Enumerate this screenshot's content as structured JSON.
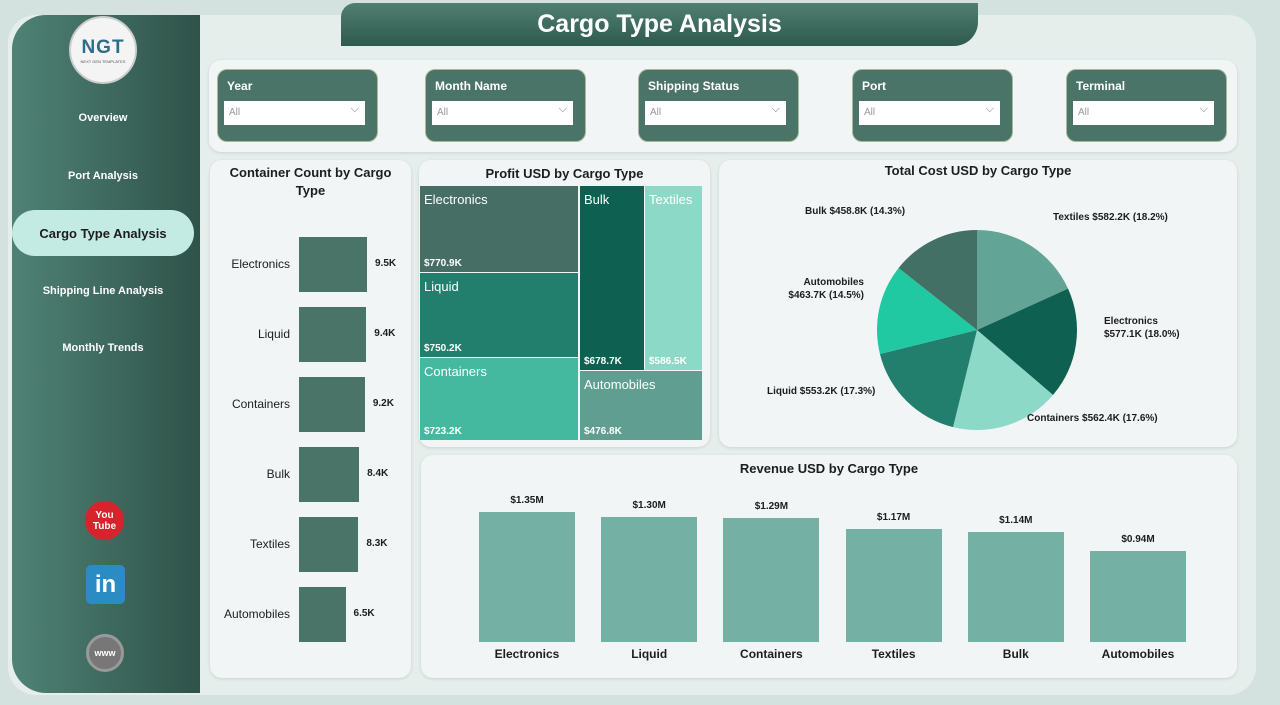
{
  "title": "Cargo Type Analysis",
  "logo": {
    "text": "NGT",
    "subtext": "NEXT GEN TEMPLATES"
  },
  "nav": [
    {
      "label": "Overview"
    },
    {
      "label": "Port Analysis"
    },
    {
      "label": "Cargo Type Analysis",
      "active": true
    },
    {
      "label": "Shipping Line Analysis"
    },
    {
      "label": "Monthly Trends"
    }
  ],
  "social": [
    {
      "icon": "youtube-icon",
      "label": "You Tube"
    },
    {
      "icon": "linkedin-icon",
      "label": "in"
    },
    {
      "icon": "globe-icon",
      "label": "www"
    }
  ],
  "filters": [
    {
      "label": "Year",
      "value": "All"
    },
    {
      "label": "Month Name",
      "value": "All"
    },
    {
      "label": "Shipping Status",
      "value": "All"
    },
    {
      "label": "Port",
      "value": "All"
    },
    {
      "label": "Terminal",
      "value": "All"
    }
  ],
  "colors": {
    "accent": "#4a7468",
    "bar": "#74b0a4",
    "active_nav": "#c3ebe3"
  },
  "chart_data": [
    {
      "type": "bar",
      "orientation": "horizontal",
      "title": "Container Count by Cargo Type",
      "categories": [
        "Electronics",
        "Liquid",
        "Containers",
        "Bulk",
        "Textiles",
        "Automobiles"
      ],
      "values": [
        9500,
        9400,
        9200,
        8400,
        8300,
        6500
      ],
      "labels": [
        "9.5K",
        "9.4K",
        "9.2K",
        "8.4K",
        "8.3K",
        "6.5K"
      ]
    },
    {
      "type": "treemap",
      "title": "Profit USD by Cargo Type",
      "categories": [
        "Electronics",
        "Liquid",
        "Containers",
        "Bulk",
        "Textiles",
        "Automobiles"
      ],
      "values": [
        770900,
        750200,
        723200,
        678700,
        586500,
        476800
      ],
      "labels": [
        "$770.9K",
        "$750.2K",
        "$723.2K",
        "$678.7K",
        "$586.5K",
        "$476.8K"
      ],
      "colors": [
        "#476e65",
        "#237f6d",
        "#44b9a0",
        "#0e6150",
        "#8dd9c8",
        "#5f9e91"
      ]
    },
    {
      "type": "pie",
      "title": "Total Cost USD by Cargo Type",
      "categories": [
        "Textiles",
        "Electronics",
        "Containers",
        "Liquid",
        "Automobiles",
        "Bulk"
      ],
      "values": [
        582200,
        577100,
        562400,
        553200,
        463700,
        458800
      ],
      "percents": [
        18.2,
        18.0,
        17.6,
        17.3,
        14.5,
        14.3
      ],
      "labels": [
        "Textiles $582.2K (18.2%)",
        "Electronics $577.1K (18.0%)",
        "Containers $562.4K (17.6%)",
        "Liquid $553.2K (17.3%)",
        "Automobiles $463.7K (14.5%)",
        "Bulk $458.8K (14.3%)"
      ],
      "colors": [
        "#62a597",
        "#0e6150",
        "#8dd9c8",
        "#237f6d",
        "#21c9a3",
        "#437065"
      ]
    },
    {
      "type": "bar",
      "title": "Revenue USD by Cargo Type",
      "categories": [
        "Electronics",
        "Liquid",
        "Containers",
        "Textiles",
        "Bulk",
        "Automobiles"
      ],
      "values": [
        1.35,
        1.3,
        1.29,
        1.17,
        1.14,
        0.94
      ],
      "unit": "M USD",
      "labels": [
        "$1.35M",
        "$1.30M",
        "$1.29M",
        "$1.17M",
        "$1.14M",
        "$0.94M"
      ]
    }
  ]
}
